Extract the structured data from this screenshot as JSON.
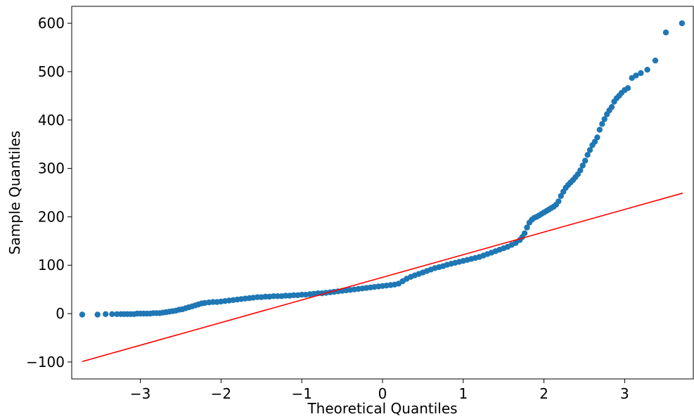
{
  "chart_data": {
    "type": "scatter",
    "title": "",
    "xlabel": "Theoretical Quantiles",
    "ylabel": "Sample Quantiles",
    "xlim": [
      -3.85,
      3.85
    ],
    "ylim": [
      -135,
      635
    ],
    "xticks": [
      {
        "value": -3,
        "label": "−3"
      },
      {
        "value": -2,
        "label": "−2"
      },
      {
        "value": -1,
        "label": "−1"
      },
      {
        "value": 0,
        "label": "0"
      },
      {
        "value": 1,
        "label": "1"
      },
      {
        "value": 2,
        "label": "2"
      },
      {
        "value": 3,
        "label": "3"
      }
    ],
    "yticks": [
      {
        "value": -100,
        "label": "−100"
      },
      {
        "value": 0,
        "label": "0"
      },
      {
        "value": 100,
        "label": "100"
      },
      {
        "value": 200,
        "label": "200"
      },
      {
        "value": 300,
        "label": "300"
      },
      {
        "value": 400,
        "label": "400"
      },
      {
        "value": 500,
        "label": "500"
      },
      {
        "value": 600,
        "label": "600"
      }
    ],
    "grid": false,
    "series": [
      {
        "kind": "points",
        "color": "#1f77b4",
        "points": [
          [
            -3.72,
            -2
          ],
          [
            -3.53,
            -2
          ],
          [
            -3.43,
            -1
          ],
          [
            -3.35,
            -1
          ],
          [
            -3.29,
            -1
          ],
          [
            -3.24,
            -1
          ],
          [
            -3.2,
            -1
          ],
          [
            -3.16,
            -1
          ],
          [
            -3.12,
            -1
          ],
          [
            -3.08,
            -1
          ],
          [
            -3.04,
            0
          ],
          [
            -3.0,
            0
          ],
          [
            -2.96,
            0
          ],
          [
            -2.92,
            0
          ],
          [
            -2.88,
            0
          ],
          [
            -2.84,
            1
          ],
          [
            -2.8,
            1
          ],
          [
            -2.76,
            1
          ],
          [
            -2.72,
            2
          ],
          [
            -2.68,
            3
          ],
          [
            -2.64,
            4
          ],
          [
            -2.6,
            5
          ],
          [
            -2.56,
            6
          ],
          [
            -2.52,
            8
          ],
          [
            -2.48,
            9
          ],
          [
            -2.44,
            11
          ],
          [
            -2.4,
            13
          ],
          [
            -2.36,
            15
          ],
          [
            -2.32,
            17
          ],
          [
            -2.28,
            19
          ],
          [
            -2.24,
            21
          ],
          [
            -2.2,
            22
          ],
          [
            -2.15,
            23
          ],
          [
            -2.1,
            24
          ],
          [
            -2.05,
            24
          ],
          [
            -2.0,
            25
          ],
          [
            -1.95,
            26
          ],
          [
            -1.9,
            27
          ],
          [
            -1.85,
            28
          ],
          [
            -1.8,
            29
          ],
          [
            -1.75,
            30
          ],
          [
            -1.7,
            31
          ],
          [
            -1.65,
            32
          ],
          [
            -1.6,
            33
          ],
          [
            -1.55,
            34
          ],
          [
            -1.5,
            34
          ],
          [
            -1.45,
            35
          ],
          [
            -1.4,
            35
          ],
          [
            -1.35,
            36
          ],
          [
            -1.3,
            36
          ],
          [
            -1.25,
            36
          ],
          [
            -1.2,
            37
          ],
          [
            -1.15,
            37
          ],
          [
            -1.1,
            38
          ],
          [
            -1.05,
            38
          ],
          [
            -1.0,
            39
          ],
          [
            -0.95,
            39
          ],
          [
            -0.9,
            40
          ],
          [
            -0.85,
            41
          ],
          [
            -0.8,
            42
          ],
          [
            -0.75,
            42
          ],
          [
            -0.7,
            43
          ],
          [
            -0.65,
            44
          ],
          [
            -0.6,
            45
          ],
          [
            -0.55,
            46
          ],
          [
            -0.5,
            47
          ],
          [
            -0.45,
            48
          ],
          [
            -0.4,
            49
          ],
          [
            -0.35,
            50
          ],
          [
            -0.3,
            51
          ],
          [
            -0.25,
            52
          ],
          [
            -0.2,
            53
          ],
          [
            -0.15,
            54
          ],
          [
            -0.1,
            55
          ],
          [
            -0.05,
            56
          ],
          [
            0.0,
            57
          ],
          [
            0.05,
            58
          ],
          [
            0.1,
            59
          ],
          [
            0.15,
            60
          ],
          [
            0.2,
            62
          ],
          [
            0.25,
            67
          ],
          [
            0.3,
            72
          ],
          [
            0.35,
            76
          ],
          [
            0.4,
            79
          ],
          [
            0.45,
            82
          ],
          [
            0.5,
            85
          ],
          [
            0.55,
            88
          ],
          [
            0.6,
            91
          ],
          [
            0.65,
            94
          ],
          [
            0.7,
            96
          ],
          [
            0.75,
            98
          ],
          [
            0.8,
            101
          ],
          [
            0.85,
            103
          ],
          [
            0.9,
            105
          ],
          [
            0.95,
            107
          ],
          [
            1.0,
            109
          ],
          [
            1.05,
            111
          ],
          [
            1.1,
            113
          ],
          [
            1.15,
            115
          ],
          [
            1.2,
            117
          ],
          [
            1.25,
            120
          ],
          [
            1.3,
            123
          ],
          [
            1.35,
            126
          ],
          [
            1.4,
            129
          ],
          [
            1.45,
            132
          ],
          [
            1.5,
            135
          ],
          [
            1.55,
            138
          ],
          [
            1.6,
            142
          ],
          [
            1.65,
            146
          ],
          [
            1.7,
            152
          ],
          [
            1.73,
            158
          ],
          [
            1.76,
            166
          ],
          [
            1.79,
            178
          ],
          [
            1.82,
            188
          ],
          [
            1.85,
            194
          ],
          [
            1.88,
            198
          ],
          [
            1.91,
            200
          ],
          [
            1.94,
            203
          ],
          [
            1.97,
            206
          ],
          [
            2.0,
            209
          ],
          [
            2.03,
            212
          ],
          [
            2.06,
            215
          ],
          [
            2.09,
            218
          ],
          [
            2.12,
            221
          ],
          [
            2.15,
            225
          ],
          [
            2.18,
            232
          ],
          [
            2.21,
            243
          ],
          [
            2.24,
            252
          ],
          [
            2.27,
            260
          ],
          [
            2.3,
            266
          ],
          [
            2.33,
            271
          ],
          [
            2.36,
            276
          ],
          [
            2.39,
            282
          ],
          [
            2.42,
            288
          ],
          [
            2.45,
            296
          ],
          [
            2.48,
            306
          ],
          [
            2.51,
            316
          ],
          [
            2.54,
            328
          ],
          [
            2.57,
            338
          ],
          [
            2.6,
            348
          ],
          [
            2.63,
            355
          ],
          [
            2.66,
            364
          ],
          [
            2.69,
            380
          ],
          [
            2.72,
            392
          ],
          [
            2.75,
            402
          ],
          [
            2.78,
            412
          ],
          [
            2.81,
            420
          ],
          [
            2.84,
            427
          ],
          [
            2.87,
            438
          ],
          [
            2.9,
            445
          ],
          [
            2.93,
            450
          ],
          [
            2.96,
            456
          ],
          [
            3.0,
            462
          ],
          [
            3.04,
            466
          ],
          [
            3.09,
            487
          ],
          [
            3.14,
            492
          ],
          [
            3.2,
            497
          ],
          [
            3.28,
            504
          ],
          [
            3.38,
            523
          ],
          [
            3.51,
            581
          ],
          [
            3.71,
            600
          ]
        ]
      },
      {
        "kind": "reference-line",
        "color": "#ff0000",
        "from": [
          -3.72,
          -99
        ],
        "to": [
          3.72,
          249
        ]
      }
    ]
  }
}
